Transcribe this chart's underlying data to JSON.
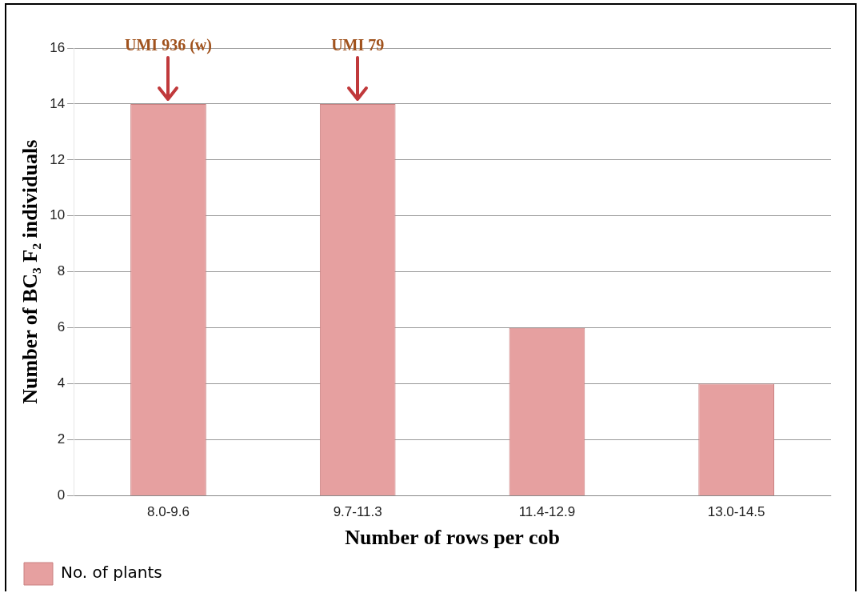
{
  "chart_data": {
    "type": "bar",
    "xlabel": "Number of rows per cob",
    "ylabel": "Number of BC₃ F₂ individuals",
    "categories": [
      "8.0-9.6",
      "9.7-11.3",
      "11.4-12.9",
      "13.0-14.5"
    ],
    "series": [
      {
        "name": "No. of plants",
        "color": "#e6a0a0",
        "values": [
          14,
          14,
          6,
          4
        ]
      }
    ],
    "ylim": [
      0,
      16
    ],
    "yticks": [
      0,
      2,
      4,
      6,
      8,
      10,
      12,
      14,
      16
    ],
    "grid": "y",
    "legend": "bottom left",
    "annotations": [
      "UMI 936 (w)",
      "UMI 79"
    ]
  }
}
